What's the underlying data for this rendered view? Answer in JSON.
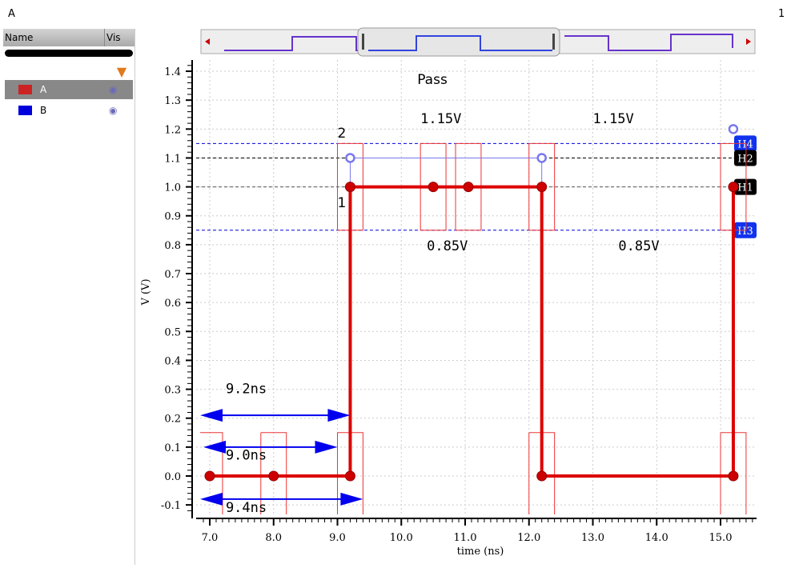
{
  "title": "A",
  "page_number": "1",
  "panel": {
    "col_name": "Name",
    "col_vis": "Vis",
    "icons": {
      "filter": "funnel-icon",
      "visible": "eye-icon"
    },
    "signals": [
      {
        "name": "A",
        "color": "#cc2222",
        "selected": true
      },
      {
        "name": "B",
        "color": "#0000dd",
        "selected": false
      }
    ]
  },
  "chart_data": {
    "type": "line",
    "title": "Pass",
    "xlabel": "time (ns)",
    "ylabel": "V (V)",
    "xlim": [
      6.85,
      15.55
    ],
    "ylim": [
      -0.13,
      1.43
    ],
    "grid": true,
    "xticks": [
      "7.0",
      "8.0",
      "9.0",
      "10.0",
      "11.0",
      "12.0",
      "13.0",
      "14.0",
      "15.0"
    ],
    "yticks": [
      "-0.1",
      "0.0",
      "0.1",
      "0.2",
      "0.3",
      "0.4",
      "0.5",
      "0.6",
      "0.7",
      "0.8",
      "0.9",
      "1.0",
      "1.1",
      "1.2",
      "1.3",
      "1.4"
    ],
    "series": [
      {
        "name": "A",
        "color": "#dd0000",
        "x": [
          7.0,
          9.2,
          9.2,
          12.2,
          12.2,
          15.2,
          15.2
        ],
        "y": [
          0,
          0,
          1.0,
          1.0,
          0,
          0,
          1.0
        ],
        "points": [
          [
            7.0,
            0
          ],
          [
            8.0,
            0
          ],
          [
            9.2,
            0
          ],
          [
            9.2,
            1.0
          ],
          [
            10.5,
            1.0
          ],
          [
            11.05,
            1.0
          ],
          [
            12.2,
            1.0
          ],
          [
            12.2,
            0
          ],
          [
            15.2,
            0
          ],
          [
            15.2,
            1.0
          ]
        ]
      },
      {
        "name": "B",
        "color": "#7777ee",
        "points": [
          [
            9.2,
            1.1
          ],
          [
            12.2,
            1.1
          ],
          [
            15.2,
            1.2
          ]
        ]
      }
    ],
    "hlines": [
      {
        "label": "H4",
        "value": 1.15,
        "color": "#0000dd"
      },
      {
        "label": "H2",
        "value": 1.1,
        "color": "#000000"
      },
      {
        "label": "H1",
        "value": 1.0,
        "color": "#555555"
      },
      {
        "label": "H3",
        "value": 0.85,
        "color": "#0000dd"
      }
    ],
    "annotations": [
      {
        "text": "1.15V",
        "x": 10.3,
        "y": 1.22
      },
      {
        "text": "1.15V",
        "x": 13.0,
        "y": 1.22
      },
      {
        "text": "0.85V",
        "x": 10.4,
        "y": 0.78
      },
      {
        "text": "0.85V",
        "x": 13.4,
        "y": 0.78
      },
      {
        "text": "2",
        "x": 9.0,
        "y": 1.17
      },
      {
        "text": "1",
        "x": 9.0,
        "y": 0.93
      }
    ],
    "masks_top": [
      [
        9.0,
        9.4
      ],
      [
        10.3,
        10.7
      ],
      [
        10.85,
        11.25
      ],
      [
        12.0,
        12.4
      ],
      [
        15.0,
        15.4
      ]
    ],
    "masks_bottom": [
      [
        6.85,
        7.2
      ],
      [
        7.8,
        8.2
      ],
      [
        9.0,
        9.4
      ],
      [
        12.0,
        12.4
      ],
      [
        15.0,
        15.4
      ]
    ],
    "measurements": [
      {
        "label": "9.2ns",
        "y": 0.21,
        "x0": 6.85,
        "x1": 9.2,
        "ly": 0.3
      },
      {
        "label": "9.0ns",
        "y": 0.1,
        "x0": 6.9,
        "x1": 9.0,
        "ly": 0.07
      },
      {
        "label": "9.4ns",
        "y": -0.08,
        "x0": 6.85,
        "x1": 9.4,
        "ly": -0.11
      }
    ]
  }
}
